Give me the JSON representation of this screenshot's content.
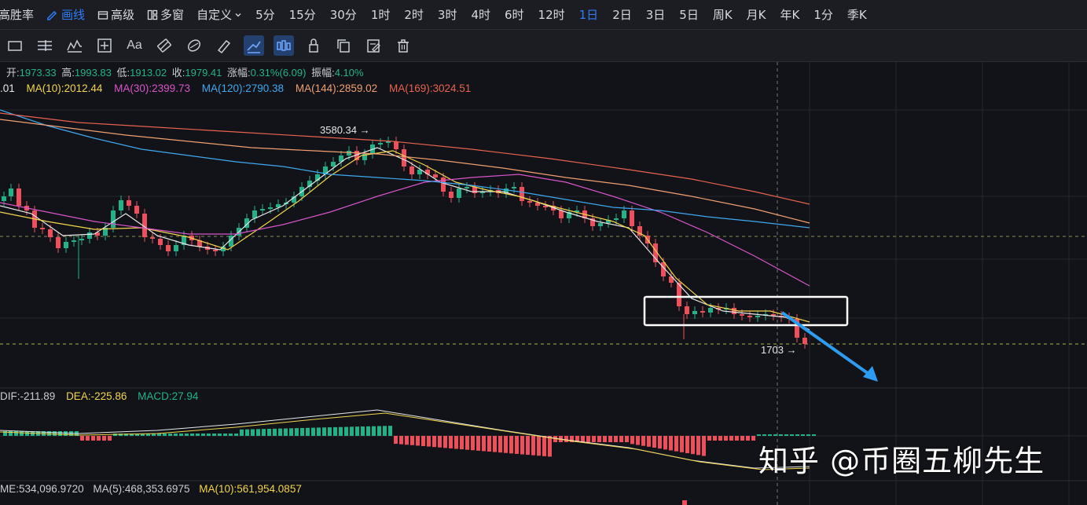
{
  "topbar": {
    "lead_label": "高胜率",
    "draw_label": "画线",
    "advanced_label": "高级",
    "multi_window_label": "多窗",
    "custom_label": "自定义",
    "periods": [
      {
        "label": "5分",
        "active": false
      },
      {
        "label": "15分",
        "active": false
      },
      {
        "label": "30分",
        "active": false
      },
      {
        "label": "1时",
        "active": false
      },
      {
        "label": "2时",
        "active": false
      },
      {
        "label": "3时",
        "active": false
      },
      {
        "label": "4时",
        "active": false
      },
      {
        "label": "6时",
        "active": false
      },
      {
        "label": "12时",
        "active": false
      },
      {
        "label": "1日",
        "active": true
      },
      {
        "label": "2日",
        "active": false
      },
      {
        "label": "3日",
        "active": false
      },
      {
        "label": "5日",
        "active": false
      },
      {
        "label": "周K",
        "active": false
      },
      {
        "label": "月K",
        "active": false
      },
      {
        "label": "年K",
        "active": false
      },
      {
        "label": "1分",
        "active": false
      },
      {
        "label": "季K",
        "active": false
      }
    ]
  },
  "toolbar": {
    "tools": [
      {
        "name": "rectangle-tool-icon",
        "active": false
      },
      {
        "name": "parallel-lines-tool-icon",
        "active": false
      },
      {
        "name": "wave-pattern-tool-icon",
        "active": false
      },
      {
        "name": "measure-tool-icon",
        "active": false
      },
      {
        "name": "text-tool-icon",
        "active": false
      },
      {
        "name": "magnet-tool-icon",
        "active": false
      },
      {
        "name": "magnet-strong-tool-icon",
        "active": false
      },
      {
        "name": "ruler-tool-icon",
        "active": false
      },
      {
        "name": "draw-mode-icon",
        "active": true
      },
      {
        "name": "candle-type-icon",
        "active": true
      },
      {
        "name": "lock-icon",
        "active": false
      },
      {
        "name": "copy-icon",
        "active": false
      },
      {
        "name": "edit-icon",
        "active": false
      },
      {
        "name": "trash-icon",
        "active": false
      }
    ],
    "text_tool_label": "Aa"
  },
  "ohlc": {
    "open_label": "开:",
    "open": "1973.33",
    "high_label": "高:",
    "high": "1993.83",
    "low_label": "低:",
    "low": "1913.02",
    "close_label": "收:",
    "close": "1979.41",
    "change_label": "涨幅:",
    "change": "0.31%(6.09)",
    "amplitude_label": "振幅:",
    "amplitude": "4.10%"
  },
  "ma": {
    "ma5_value": ".01",
    "ma10_label": "MA(10):",
    "ma10": "2012.44",
    "ma30_label": "MA(30):",
    "ma30": "2399.73",
    "ma120_label": "MA(120):",
    "ma120": "2790.38",
    "ma144_label": "MA(144):",
    "ma144": "2859.02",
    "ma169_label": "MA(169):",
    "ma169": "3024.51"
  },
  "macd": {
    "dif_label": "DIF:",
    "dif": "-211.89",
    "dea_label": "DEA:",
    "dea": "-225.86",
    "macd_label": "MACD:",
    "macd": "27.94"
  },
  "volume": {
    "vol_label": "ME:",
    "vol": "534,096.9720",
    "ma5_label": "MA(5):",
    "ma5": "468,353.6975",
    "ma10_label": "MA(10):",
    "ma10": "561,954.0857"
  },
  "annotations": {
    "peak_label": "3580.34",
    "low_label": "1703"
  },
  "watermark": "知乎 @币圈五柳先生",
  "colors": {
    "up": "#22b28a",
    "down": "#ef4f5a",
    "ma5": "#e8e8e8",
    "ma10": "#f3d54d",
    "ma30": "#d855c9",
    "ma120": "#3fa8ef",
    "ma144": "#f0a070",
    "ma169": "#e8634f",
    "accent": "#2f7df6",
    "arrow": "#2d9cf0",
    "dif": "#e8e8e8",
    "dea": "#f3d54d"
  }
}
